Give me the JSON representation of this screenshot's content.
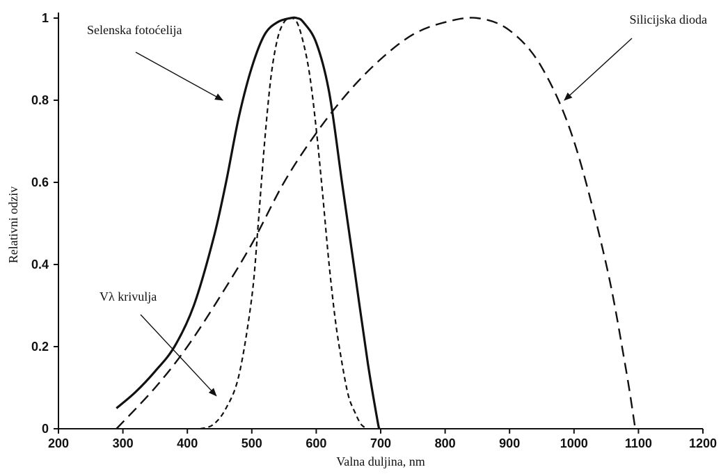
{
  "chart_data": {
    "type": "line",
    "title": "",
    "xlabel": "Valna duljina, nm",
    "ylabel": "Relativni odziv",
    "xlim": [
      200,
      1200
    ],
    "ylim": [
      0,
      1
    ],
    "x_ticks": [
      "200",
      "300",
      "400",
      "500",
      "600",
      "700",
      "800",
      "900",
      "1000",
      "1100",
      "1200"
    ],
    "y_ticks": [
      "0",
      "0.2",
      "0.4",
      "0.6",
      "0.8",
      "1"
    ],
    "grid": false,
    "series": [
      {
        "name": "Selenska fotoćelija",
        "style": "solid",
        "x": [
          290,
          320,
          350,
          380,
          410,
          440,
          460,
          480,
          500,
          520,
          540,
          560,
          570,
          580,
          600,
          620,
          640,
          660,
          680,
          695,
          698
        ],
        "y": [
          0.05,
          0.09,
          0.14,
          0.2,
          0.3,
          0.46,
          0.6,
          0.76,
          0.88,
          0.96,
          0.99,
          1.0,
          1.0,
          0.99,
          0.94,
          0.82,
          0.6,
          0.38,
          0.16,
          0.02,
          0.0
        ]
      },
      {
        "name": "Vλ krivulja",
        "style": "short-dash",
        "x": [
          420,
          440,
          460,
          480,
          500,
          510,
          520,
          530,
          540,
          550,
          560,
          570,
          580,
          590,
          600,
          610,
          620,
          630,
          640,
          650,
          660,
          670,
          680
        ],
        "y": [
          0.0,
          0.01,
          0.05,
          0.13,
          0.32,
          0.5,
          0.7,
          0.86,
          0.95,
          0.99,
          1.0,
          0.99,
          0.94,
          0.86,
          0.73,
          0.57,
          0.4,
          0.26,
          0.16,
          0.08,
          0.04,
          0.01,
          0.0
        ]
      },
      {
        "name": "Silicijska dioda",
        "style": "long-dash",
        "x": [
          290,
          350,
          400,
          450,
          500,
          550,
          600,
          650,
          700,
          750,
          800,
          850,
          900,
          950,
          1000,
          1050,
          1080,
          1095
        ],
        "y": [
          0.0,
          0.1,
          0.2,
          0.32,
          0.45,
          0.6,
          0.72,
          0.82,
          0.9,
          0.96,
          0.99,
          1.0,
          0.97,
          0.88,
          0.7,
          0.4,
          0.15,
          0.0
        ]
      }
    ],
    "annotations": [
      {
        "text": "Selenska fotoćelija",
        "points_to": "Selenska fotoćelija",
        "target": [
          455,
          0.8
        ]
      },
      {
        "text": "Silicijska dioda",
        "points_to": "Silicijska dioda",
        "target": [
          985,
          0.8
        ]
      },
      {
        "text": "Vλ krivulja",
        "points_to": "Vλ krivulja",
        "target": [
          445,
          0.08
        ]
      }
    ]
  }
}
